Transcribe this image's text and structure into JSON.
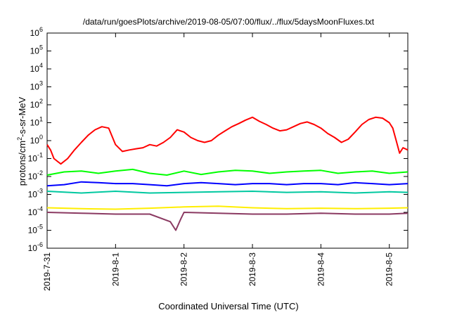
{
  "chart_data": {
    "type": "line",
    "title": "/data/run/goesPlots/archive/2019-08-05/07:00/flux/../flux/5daysMoonFluxes.txt",
    "xlabel": "Coordinated Universal Time (UTC)",
    "ylabel_main": "protons/cm",
    "ylabel_sup": "2",
    "ylabel_rest": "-s-sr-MeV",
    "x_ticks": [
      "2019-7-31",
      "2019-8-1",
      "2019-8-2",
      "2019-8-3",
      "2019-8-4",
      "2019-8-5"
    ],
    "x_range_days": [
      0,
      5.27
    ],
    "y_scale": "log",
    "ylim": [
      1e-06,
      1000000.0
    ],
    "y_ticks": [
      {
        "base": "10",
        "exp": "-6"
      },
      {
        "base": "10",
        "exp": "-5"
      },
      {
        "base": "10",
        "exp": "-4"
      },
      {
        "base": "10",
        "exp": "-3"
      },
      {
        "base": "10",
        "exp": "-2"
      },
      {
        "base": "10",
        "exp": "-1"
      },
      {
        "base": "10",
        "exp": "0"
      },
      {
        "base": "10",
        "exp": "1"
      },
      {
        "base": "10",
        "exp": "2"
      },
      {
        "base": "10",
        "exp": "3"
      },
      {
        "base": "10",
        "exp": "4"
      },
      {
        "base": "10",
        "exp": "5"
      },
      {
        "base": "10",
        "exp": "6"
      }
    ],
    "grid": false,
    "series": [
      {
        "color": "#ff0000",
        "x": [
          0,
          0.05,
          0.1,
          0.15,
          0.2,
          0.3,
          0.4,
          0.5,
          0.6,
          0.7,
          0.8,
          0.9,
          1.0,
          1.1,
          1.2,
          1.3,
          1.4,
          1.5,
          1.6,
          1.7,
          1.8,
          1.9,
          2.0,
          2.1,
          2.2,
          2.3,
          2.4,
          2.5,
          2.6,
          2.7,
          2.8,
          2.9,
          3.0,
          3.1,
          3.2,
          3.3,
          3.4,
          3.5,
          3.6,
          3.7,
          3.8,
          3.9,
          4.0,
          4.1,
          4.2,
          4.3,
          4.4,
          4.5,
          4.6,
          4.7,
          4.8,
          4.9,
          5.0,
          5.05,
          5.1,
          5.15,
          5.2,
          5.27
        ],
        "y": [
          0.6,
          0.3,
          0.1,
          0.07,
          0.05,
          0.1,
          0.3,
          0.8,
          2,
          4,
          6,
          5,
          0.6,
          0.25,
          0.3,
          0.35,
          0.4,
          0.6,
          0.5,
          0.8,
          1.5,
          4,
          3,
          1.5,
          1,
          0.8,
          1,
          2,
          3.5,
          6,
          9,
          14,
          20,
          12,
          8,
          5,
          3.5,
          4,
          6,
          9,
          11,
          8,
          5,
          2.5,
          1.5,
          0.8,
          1.2,
          3,
          8,
          15,
          20,
          18,
          10,
          5,
          1,
          0.2,
          0.4,
          0.3
        ]
      },
      {
        "color": "#00ff00",
        "x": [
          0,
          0.25,
          0.5,
          0.75,
          1.0,
          1.25,
          1.5,
          1.75,
          2.0,
          2.25,
          2.5,
          2.75,
          3.0,
          3.25,
          3.5,
          3.75,
          4.0,
          4.25,
          4.5,
          4.75,
          5.0,
          5.27
        ],
        "y": [
          0.012,
          0.018,
          0.02,
          0.015,
          0.02,
          0.025,
          0.015,
          0.012,
          0.02,
          0.013,
          0.018,
          0.022,
          0.02,
          0.015,
          0.018,
          0.02,
          0.022,
          0.015,
          0.018,
          0.02,
          0.015,
          0.018
        ]
      },
      {
        "color": "#0000ff",
        "x": [
          0,
          0.25,
          0.5,
          0.75,
          1.0,
          1.25,
          1.5,
          1.75,
          2.0,
          2.25,
          2.5,
          2.75,
          3.0,
          3.25,
          3.5,
          3.75,
          4.0,
          4.25,
          4.5,
          4.75,
          5.0,
          5.27
        ],
        "y": [
          0.003,
          0.0035,
          0.005,
          0.0045,
          0.004,
          0.004,
          0.0035,
          0.003,
          0.004,
          0.0045,
          0.004,
          0.0035,
          0.004,
          0.004,
          0.0035,
          0.004,
          0.004,
          0.0035,
          0.0045,
          0.004,
          0.0035,
          0.004
        ]
      },
      {
        "color": "#00c8a0",
        "x": [
          0,
          0.5,
          1.0,
          1.5,
          2.0,
          2.5,
          3.0,
          3.5,
          4.0,
          4.5,
          5.0,
          5.27
        ],
        "y": [
          0.0015,
          0.0012,
          0.0015,
          0.0012,
          0.0013,
          0.0014,
          0.0015,
          0.0013,
          0.0014,
          0.0012,
          0.0014,
          0.0013
        ]
      },
      {
        "color": "#ffee00",
        "x": [
          0,
          0.5,
          1.0,
          1.5,
          2.0,
          2.5,
          3.0,
          3.5,
          4.0,
          4.5,
          5.0,
          5.27
        ],
        "y": [
          0.00018,
          0.00016,
          0.00015,
          0.00017,
          0.0002,
          0.00022,
          0.00018,
          0.00016,
          0.00017,
          0.00016,
          0.00017,
          0.00018
        ]
      },
      {
        "color": "#8b3a62",
        "x": [
          0,
          0.5,
          1.0,
          1.5,
          1.8,
          1.88,
          1.95,
          2.0,
          2.5,
          3.0,
          3.5,
          4.0,
          4.5,
          5.0,
          5.27
        ],
        "y": [
          0.0001,
          9e-05,
          8e-05,
          8e-05,
          3e-05,
          1e-05,
          4e-05,
          0.0001,
          9e-05,
          8e-05,
          8e-05,
          9e-05,
          8e-05,
          8e-05,
          9e-05
        ]
      }
    ]
  }
}
